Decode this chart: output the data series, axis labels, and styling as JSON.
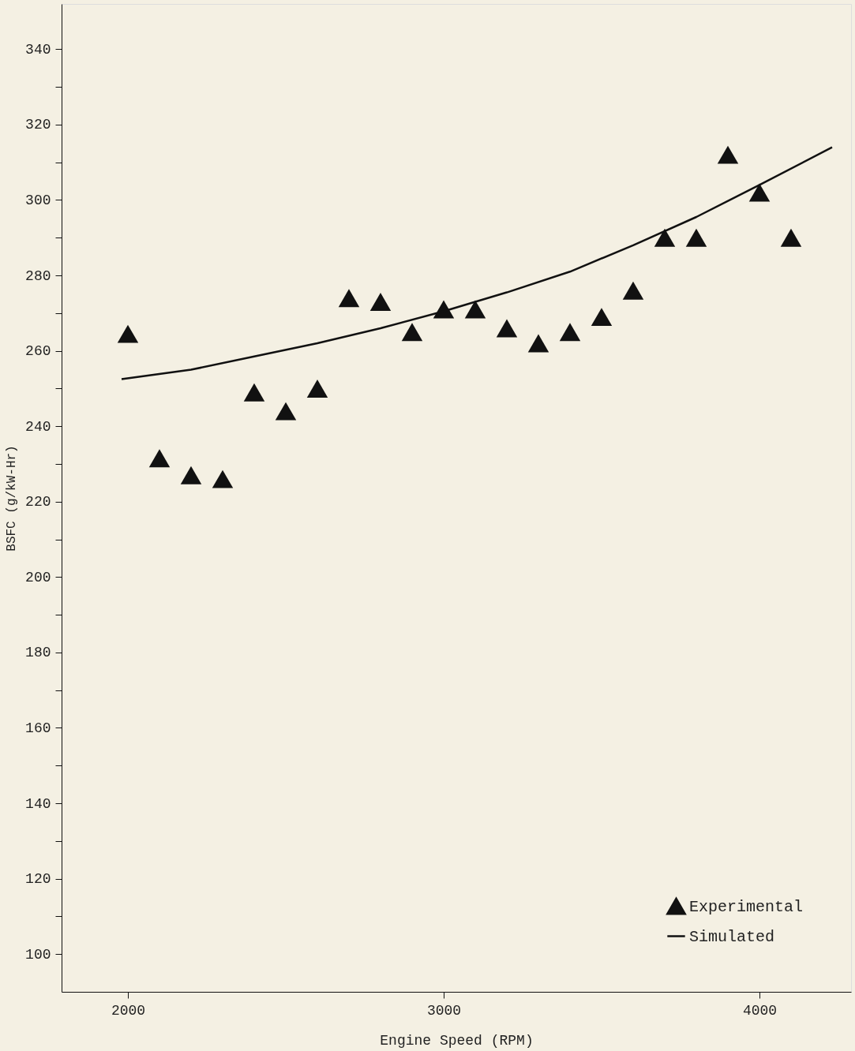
{
  "chart_data": {
    "type": "scatter",
    "xlabel": "Engine Speed (RPM)",
    "ylabel": "BSFC (g/kW-Hr)",
    "xlim": [
      1790,
      4290
    ],
    "ylim": [
      90,
      352
    ],
    "xticks": [
      2000,
      3000,
      4000
    ],
    "yticks": [
      100,
      {
        "value": 110,
        "label": null
      },
      120,
      {
        "value": 130,
        "label": null
      },
      140,
      {
        "value": 150,
        "label": null
      },
      160,
      {
        "value": 170,
        "label": null
      },
      180,
      {
        "value": 190,
        "label": null
      },
      200,
      {
        "value": 210,
        "label": null
      },
      220,
      {
        "value": 230,
        "label": null
      },
      240,
      {
        "value": 250,
        "label": null
      },
      260,
      {
        "value": 270,
        "label": null
      },
      280,
      {
        "value": 290,
        "label": null
      },
      300,
      {
        "value": 310,
        "label": null
      },
      320,
      {
        "value": 330,
        "label": null
      },
      340
    ],
    "grid": false,
    "legend": "bottom right",
    "series": [
      {
        "name": "Experimental",
        "marker": "triangle",
        "color": "#111111",
        "x": [
          2000,
          2100,
          2200,
          2300,
          2400,
          2500,
          2600,
          2700,
          2800,
          2900,
          3000,
          3100,
          3200,
          3300,
          3400,
          3500,
          3600,
          3700,
          3800,
          3900,
          4000,
          4100
        ],
        "values": [
          264.5,
          231.5,
          227,
          226,
          249,
          244,
          250,
          274,
          273,
          265,
          271,
          271,
          266,
          262,
          265,
          269,
          276,
          290,
          290,
          312,
          302,
          290
        ]
      },
      {
        "name": "Simulated",
        "type": "line",
        "marker": "none",
        "line_style": "solid",
        "color": "#111111",
        "x": [
          1980,
          2200,
          2400,
          2600,
          2800,
          3000,
          3200,
          3400,
          3600,
          3800,
          4000,
          4230
        ],
        "values": [
          252.5,
          255,
          258.5,
          262,
          266,
          270.5,
          275.5,
          281,
          288,
          295.5,
          304,
          314
        ]
      }
    ]
  }
}
